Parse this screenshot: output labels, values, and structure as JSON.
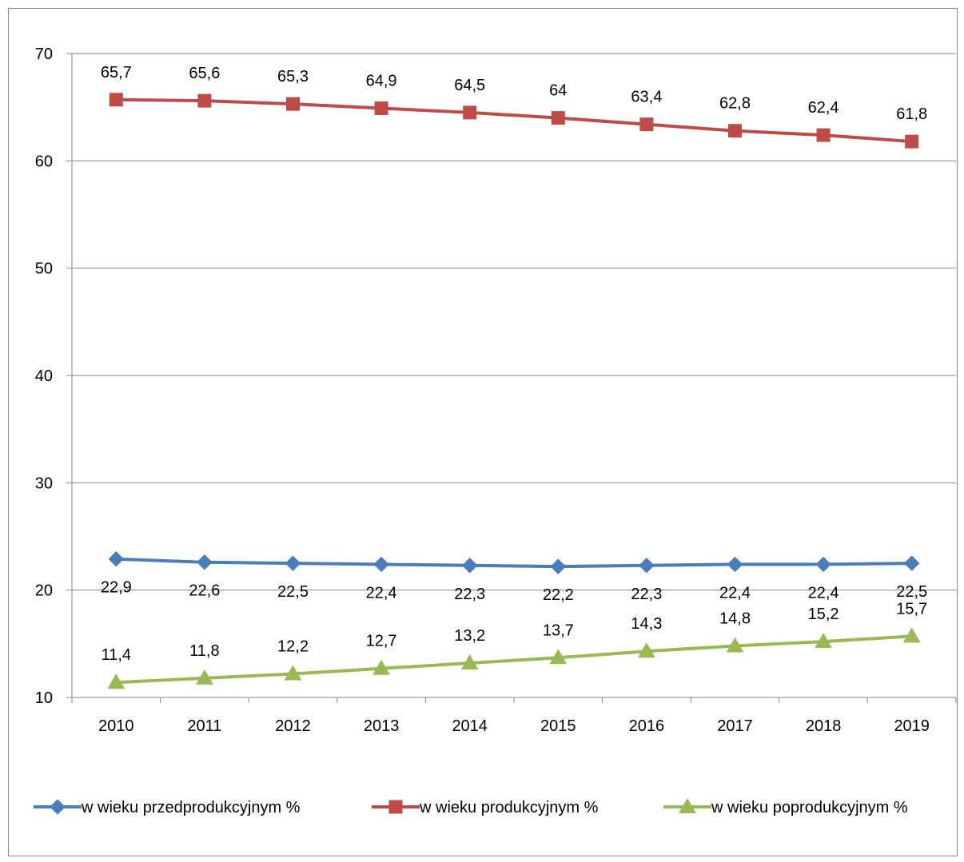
{
  "chart_data": {
    "type": "line",
    "title": "",
    "xlabel": "",
    "ylabel": "",
    "categories": [
      "2010",
      "2011",
      "2012",
      "2013",
      "2014",
      "2015",
      "2016",
      "2017",
      "2018",
      "2019"
    ],
    "ylim": [
      10,
      70
    ],
    "yticks": [
      10,
      20,
      30,
      40,
      50,
      60,
      70
    ],
    "grid": "horizontal",
    "legend_position": "bottom",
    "series": [
      {
        "name": "w wieku przedprodukcyjnym %",
        "values": [
          22.9,
          22.6,
          22.5,
          22.4,
          22.3,
          22.2,
          22.3,
          22.4,
          22.4,
          22.5
        ],
        "labels": [
          "22,9",
          "22,6",
          "22,5",
          "22,4",
          "22,3",
          "22,2",
          "22,3",
          "22,4",
          "22,4",
          "22,5"
        ],
        "color": "#4a7ebb",
        "marker": "diamond",
        "label_position": "below"
      },
      {
        "name": "w wieku produkcyjnym %",
        "values": [
          65.7,
          65.6,
          65.3,
          64.9,
          64.5,
          64.0,
          63.4,
          62.8,
          62.4,
          61.8
        ],
        "labels": [
          "65,7",
          "65,6",
          "65,3",
          "64,9",
          "64,5",
          "64",
          "63,4",
          "62,8",
          "62,4",
          "61,8"
        ],
        "color": "#be4b48",
        "marker": "square",
        "label_position": "above"
      },
      {
        "name": "w wieku poprodukcyjnym %",
        "values": [
          11.4,
          11.8,
          12.2,
          12.7,
          13.2,
          13.7,
          14.3,
          14.8,
          15.2,
          15.7
        ],
        "labels": [
          "11,4",
          "11,8",
          "12,2",
          "12,7",
          "13,2",
          "13,7",
          "14,3",
          "14,8",
          "15,2",
          "15,7"
        ],
        "color": "#98b954",
        "marker": "triangle",
        "label_position": "above"
      }
    ]
  }
}
